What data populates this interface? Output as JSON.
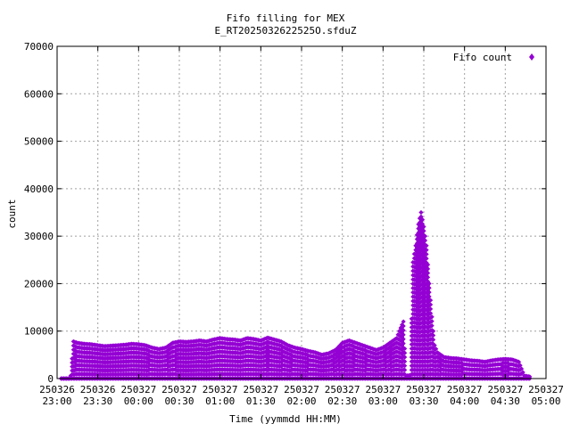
{
  "chart_data": {
    "type": "scatter",
    "title_line1": "Fifo filling for MEX",
    "title_line2": "E_RT2025032622525O.sfduZ",
    "xlabel": "Time (yymmdd HH:MM)",
    "ylabel": "count",
    "grid": true,
    "legend_position": "top-right",
    "marker_color": "#9400d3",
    "x_unit": "time",
    "xlim": [
      "2025-03-26 23:00",
      "2025-03-27 05:00"
    ],
    "ylim": [
      0,
      70000
    ],
    "y_ticks": [
      0,
      10000,
      20000,
      30000,
      40000,
      50000,
      60000,
      70000
    ],
    "x_ticks": [
      {
        "time": "23:00",
        "line1": "250326",
        "line2": "23:00"
      },
      {
        "time": "23:30",
        "line1": "250326",
        "line2": "23:30"
      },
      {
        "time": "00:00",
        "line1": "250327",
        "line2": "00:00"
      },
      {
        "time": "00:30",
        "line1": "250327",
        "line2": "00:30"
      },
      {
        "time": "01:00",
        "line1": "250327",
        "line2": "01:00"
      },
      {
        "time": "01:30",
        "line1": "250327",
        "line2": "01:30"
      },
      {
        "time": "02:00",
        "line1": "250327",
        "line2": "02:00"
      },
      {
        "time": "02:30",
        "line1": "250327",
        "line2": "02:30"
      },
      {
        "time": "03:00",
        "line1": "250327",
        "line2": "03:00"
      },
      {
        "time": "03:30",
        "line1": "250327",
        "line2": "03:30"
      },
      {
        "time": "04:00",
        "line1": "250327",
        "line2": "04:00"
      },
      {
        "time": "04:30",
        "line1": "250327",
        "line2": "04:30"
      },
      {
        "time": "05:00",
        "line1": "250327",
        "line2": "05:00"
      }
    ],
    "series": [
      {
        "name": "Fifo count",
        "envelope": [
          [
            "23:03",
            0
          ],
          [
            "23:09",
            0
          ],
          [
            "23:10",
            600
          ],
          [
            "23:12",
            7800
          ],
          [
            "23:15",
            7500
          ],
          [
            "23:20",
            7300
          ],
          [
            "23:25",
            7200
          ],
          [
            "23:30",
            7000
          ],
          [
            "23:35",
            6800
          ],
          [
            "23:40",
            6900
          ],
          [
            "23:45",
            7000
          ],
          [
            "23:50",
            7100
          ],
          [
            "23:55",
            7300
          ],
          [
            "00:00",
            7200
          ],
          [
            "00:05",
            7000
          ],
          [
            "00:10",
            6500
          ],
          [
            "00:15",
            6200
          ],
          [
            "00:20",
            6500
          ],
          [
            "00:25",
            7500
          ],
          [
            "00:30",
            7800
          ],
          [
            "00:35",
            7700
          ],
          [
            "00:40",
            7800
          ],
          [
            "00:45",
            8000
          ],
          [
            "00:50",
            7800
          ],
          [
            "00:55",
            8200
          ],
          [
            "01:00",
            8500
          ],
          [
            "01:05",
            8300
          ],
          [
            "01:10",
            8200
          ],
          [
            "01:15",
            8000
          ],
          [
            "01:20",
            8500
          ],
          [
            "01:25",
            8300
          ],
          [
            "01:30",
            8000
          ],
          [
            "01:35",
            8600
          ],
          [
            "01:40",
            8200
          ],
          [
            "01:45",
            7800
          ],
          [
            "01:50",
            7000
          ],
          [
            "01:55",
            6500
          ],
          [
            "02:00",
            6200
          ],
          [
            "02:05",
            5800
          ],
          [
            "02:10",
            5500
          ],
          [
            "02:15",
            5000
          ],
          [
            "02:20",
            5300
          ],
          [
            "02:25",
            6000
          ],
          [
            "02:30",
            7500
          ],
          [
            "02:35",
            8000
          ],
          [
            "02:40",
            7500
          ],
          [
            "02:45",
            7000
          ],
          [
            "02:50",
            6500
          ],
          [
            "02:55",
            6000
          ],
          [
            "03:00",
            6500
          ],
          [
            "03:05",
            7500
          ],
          [
            "03:10",
            8500
          ],
          [
            "03:12",
            10000
          ],
          [
            "03:15",
            12000
          ],
          [
            "03:17",
            600
          ],
          [
            "03:20",
            700
          ],
          [
            "03:22",
            24500
          ],
          [
            "03:24",
            28000
          ],
          [
            "03:26",
            32500
          ],
          [
            "03:28",
            35000
          ],
          [
            "03:30",
            32000
          ],
          [
            "03:32",
            28000
          ],
          [
            "03:34",
            20000
          ],
          [
            "03:36",
            13000
          ],
          [
            "03:38",
            7000
          ],
          [
            "03:40",
            5500
          ],
          [
            "03:45",
            4500
          ],
          [
            "03:50",
            4300
          ],
          [
            "03:55",
            4200
          ],
          [
            "04:00",
            4000
          ],
          [
            "04:05",
            3800
          ],
          [
            "04:10",
            3700
          ],
          [
            "04:15",
            3500
          ],
          [
            "04:20",
            3800
          ],
          [
            "04:25",
            4000
          ],
          [
            "04:30",
            4100
          ],
          [
            "04:35",
            4000
          ],
          [
            "04:40",
            3500
          ],
          [
            "04:44",
            600
          ],
          [
            "04:48",
            400
          ]
        ]
      }
    ]
  }
}
